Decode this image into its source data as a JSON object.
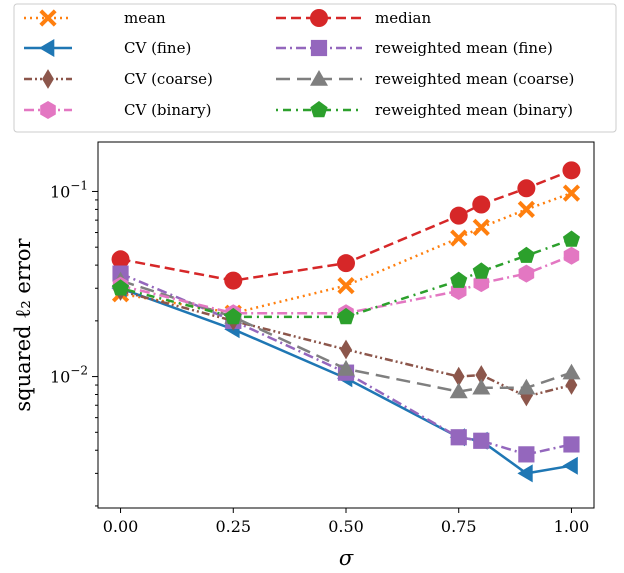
{
  "chart_data": {
    "type": "line",
    "title": "",
    "xlabel": "σ",
    "ylabel": "squared ℓ₂ error",
    "yscale": "log",
    "xlim": [
      -0.05,
      1.05
    ],
    "ylim": [
      0.00195,
      0.185
    ],
    "x": [
      0.0,
      0.25,
      0.5,
      0.75,
      0.8,
      0.9,
      1.0
    ],
    "x_ticks": [
      0.0,
      0.25,
      0.5,
      0.75,
      1.0
    ],
    "x_tick_labels": [
      "0.00",
      "0.25",
      "0.50",
      "0.75",
      "1.00"
    ],
    "y_ticks": [
      0.01,
      0.1
    ],
    "y_tick_labels": [
      {
        "base": "10",
        "exp": "−2"
      },
      {
        "base": "10",
        "exp": "−1"
      }
    ],
    "legend_position": "top",
    "series": [
      {
        "name": "mean",
        "color": "#ff7f0e",
        "dash": "dotted",
        "marker": "x",
        "values": [
          0.028,
          0.022,
          0.031,
          0.056,
          0.064,
          0.08,
          0.098
        ]
      },
      {
        "name": "median",
        "color": "#d62728",
        "dash": "dashed",
        "marker": "circle",
        "values": [
          0.043,
          0.033,
          0.041,
          0.074,
          0.085,
          0.104,
          0.13
        ]
      },
      {
        "name": "CV (fine)",
        "color": "#1f77b4",
        "dash": "solid",
        "marker": "triangle-left",
        "values": [
          0.03,
          0.018,
          0.0098,
          0.0047,
          0.0045,
          0.003,
          0.0033
        ]
      },
      {
        "name": "reweighted mean (fine)",
        "color": "#9467bd",
        "dash": "dashdot",
        "marker": "square",
        "values": [
          0.036,
          0.02,
          0.0105,
          0.0047,
          0.0045,
          0.0038,
          0.0043
        ]
      },
      {
        "name": "CV (coarse)",
        "color": "#8c564b",
        "dash": "dashdotdot",
        "marker": "diamond",
        "values": [
          0.029,
          0.02,
          0.014,
          0.01,
          0.0102,
          0.0078,
          0.009
        ]
      },
      {
        "name": "reweighted mean (coarse)",
        "color": "#7f7f7f",
        "dash": "longdash",
        "marker": "triangle-up",
        "values": [
          0.033,
          0.021,
          0.011,
          0.0083,
          0.0087,
          0.0087,
          0.0105
        ]
      },
      {
        "name": "CV (binary)",
        "color": "#e377c2",
        "dash": "dashdot",
        "marker": "hexagon",
        "values": [
          0.031,
          0.022,
          0.022,
          0.029,
          0.032,
          0.036,
          0.045
        ]
      },
      {
        "name": "reweighted mean (binary)",
        "color": "#2ca02c",
        "dash": "dotdash",
        "marker": "pentagon",
        "values": [
          0.03,
          0.021,
          0.021,
          0.033,
          0.037,
          0.045,
          0.055
        ]
      }
    ]
  }
}
